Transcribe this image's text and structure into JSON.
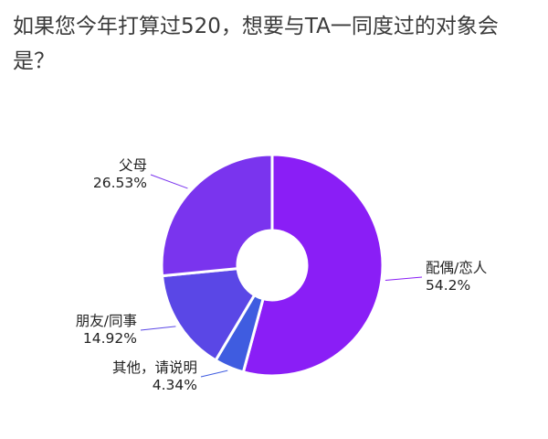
{
  "chart_data": {
    "type": "pie",
    "style": "donut",
    "title": "如果您今年打算过520，想要与TA一同度过的对象会是？",
    "slices": [
      {
        "label": "配偶/恋人",
        "value": 54.2,
        "value_label": "54.2%",
        "color": "#8a1ef6"
      },
      {
        "label": "其他，请说明",
        "value": 4.34,
        "value_label": "4.34%",
        "color": "#3f5ce0"
      },
      {
        "label": "朋友/同事",
        "value": 14.92,
        "value_label": "14.92%",
        "color": "#5a47e6"
      },
      {
        "label": "父母",
        "value": 26.53,
        "value_label": "26.53%",
        "color": "#7a34ee"
      }
    ],
    "start": "12 o'clock",
    "direction": "clockwise",
    "legend": "none",
    "separator_color": "#ffffff"
  }
}
